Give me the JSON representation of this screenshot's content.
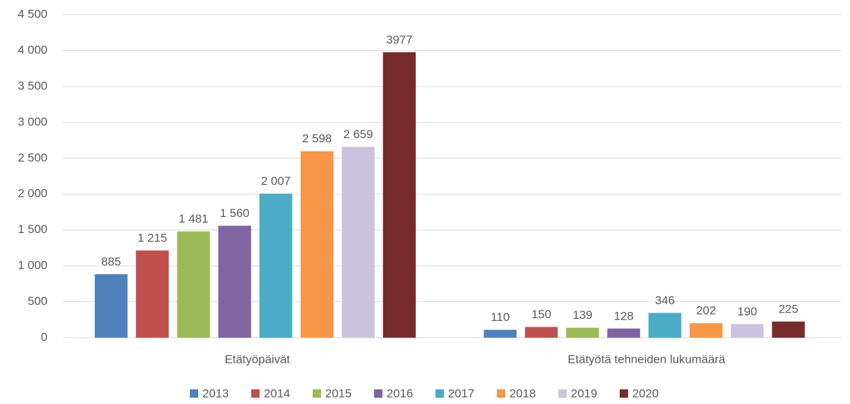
{
  "chart_data": {
    "type": "bar",
    "categories": [
      "Etätyöpäivät",
      "Etätyötä tehneiden lukumäärä"
    ],
    "series": [
      {
        "name": "2013",
        "color": "#4f81bd",
        "values": [
          885,
          110
        ],
        "value_labels": [
          "885",
          "110"
        ]
      },
      {
        "name": "2014",
        "color": "#c0504d",
        "values": [
          1215,
          150
        ],
        "value_labels": [
          "1 215",
          "150"
        ]
      },
      {
        "name": "2015",
        "color": "#9bbb59",
        "values": [
          1481,
          139
        ],
        "value_labels": [
          "1 481",
          "139"
        ]
      },
      {
        "name": "2016",
        "color": "#8064a2",
        "values": [
          1560,
          128
        ],
        "value_labels": [
          "1 560",
          "128"
        ]
      },
      {
        "name": "2017",
        "color": "#4bacc6",
        "values": [
          2007,
          346
        ],
        "value_labels": [
          "2 007",
          "346"
        ]
      },
      {
        "name": "2018",
        "color": "#f79646",
        "values": [
          2598,
          202
        ],
        "value_labels": [
          "2 598",
          "202"
        ]
      },
      {
        "name": "2019",
        "color": "#cbc3dd",
        "values": [
          2659,
          190
        ],
        "value_labels": [
          "2 659",
          "190"
        ]
      },
      {
        "name": "2020",
        "color": "#772c2a",
        "values": [
          3977,
          225
        ],
        "value_labels": [
          "3977",
          "225"
        ]
      }
    ],
    "ylim": [
      0,
      4500
    ],
    "yticks": [
      0,
      500,
      {
        "value": 1000,
        "label": "1 000"
      },
      {
        "value": 1500,
        "label": "1 500"
      },
      {
        "value": 2000,
        "label": "2 000"
      },
      {
        "value": 2500,
        "label": "2 500"
      },
      {
        "value": 3000,
        "label": "3 000"
      },
      {
        "value": 3500,
        "label": "3 500"
      },
      {
        "value": 4000,
        "label": "4 000"
      },
      {
        "value": 4500,
        "label": "4 500"
      }
    ],
    "grid": true,
    "legend": "bottom"
  }
}
